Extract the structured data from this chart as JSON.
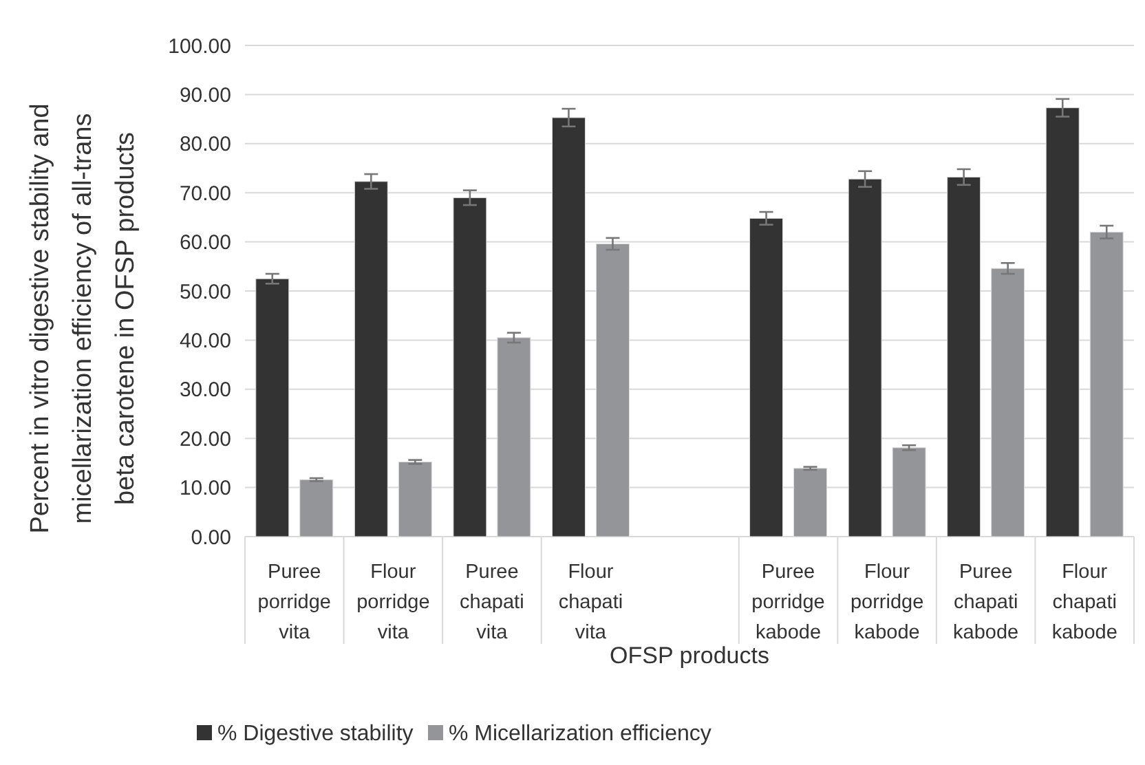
{
  "chart_data": {
    "type": "bar",
    "xlabel": "OFSP products",
    "ylabel": "Percent in vitro digestive stability and micellarization efficiency of all-trans beta carotene in OFSP products",
    "categories": [
      "Puree porridge vita",
      "Flour porridge vita",
      "Puree chapati vita",
      "Flour chapati vita",
      null,
      "Puree porridge kabode",
      "Flour porridge kabode",
      "Puree chapati kabode",
      "Flour chapati kabode"
    ],
    "series": [
      {
        "name": "% Digestive stability",
        "color": "#333333",
        "values": [
          52.5,
          72.3,
          69.0,
          85.3,
          null,
          64.8,
          72.8,
          73.2,
          87.3
        ],
        "errors": [
          1.0,
          1.5,
          1.5,
          1.8,
          null,
          1.3,
          1.6,
          1.6,
          1.8
        ]
      },
      {
        "name": "% Micellarization efficiency",
        "color": "#939598",
        "values": [
          11.6,
          15.2,
          40.5,
          59.6,
          null,
          13.9,
          18.1,
          54.6,
          62.0
        ],
        "errors": [
          0.3,
          0.4,
          1.0,
          1.2,
          null,
          0.3,
          0.5,
          1.1,
          1.3
        ]
      }
    ],
    "ylim": [
      0,
      100
    ],
    "yticks": [
      {
        "value": 0,
        "label": "0.00"
      },
      {
        "value": 10,
        "label": "10.00"
      },
      {
        "value": 20,
        "label": "20.00"
      },
      {
        "value": 30,
        "label": "30.00"
      },
      {
        "value": 40,
        "label": "40.00"
      },
      {
        "value": 50,
        "label": "50.00"
      },
      {
        "value": 60,
        "label": "60.00"
      },
      {
        "value": 70,
        "label": "70.00"
      },
      {
        "value": 80,
        "label": "80.00"
      },
      {
        "value": 90,
        "label": "90.00"
      },
      {
        "value": 100,
        "label": "100.00"
      }
    ],
    "grid": "y",
    "legend": "bottom"
  }
}
